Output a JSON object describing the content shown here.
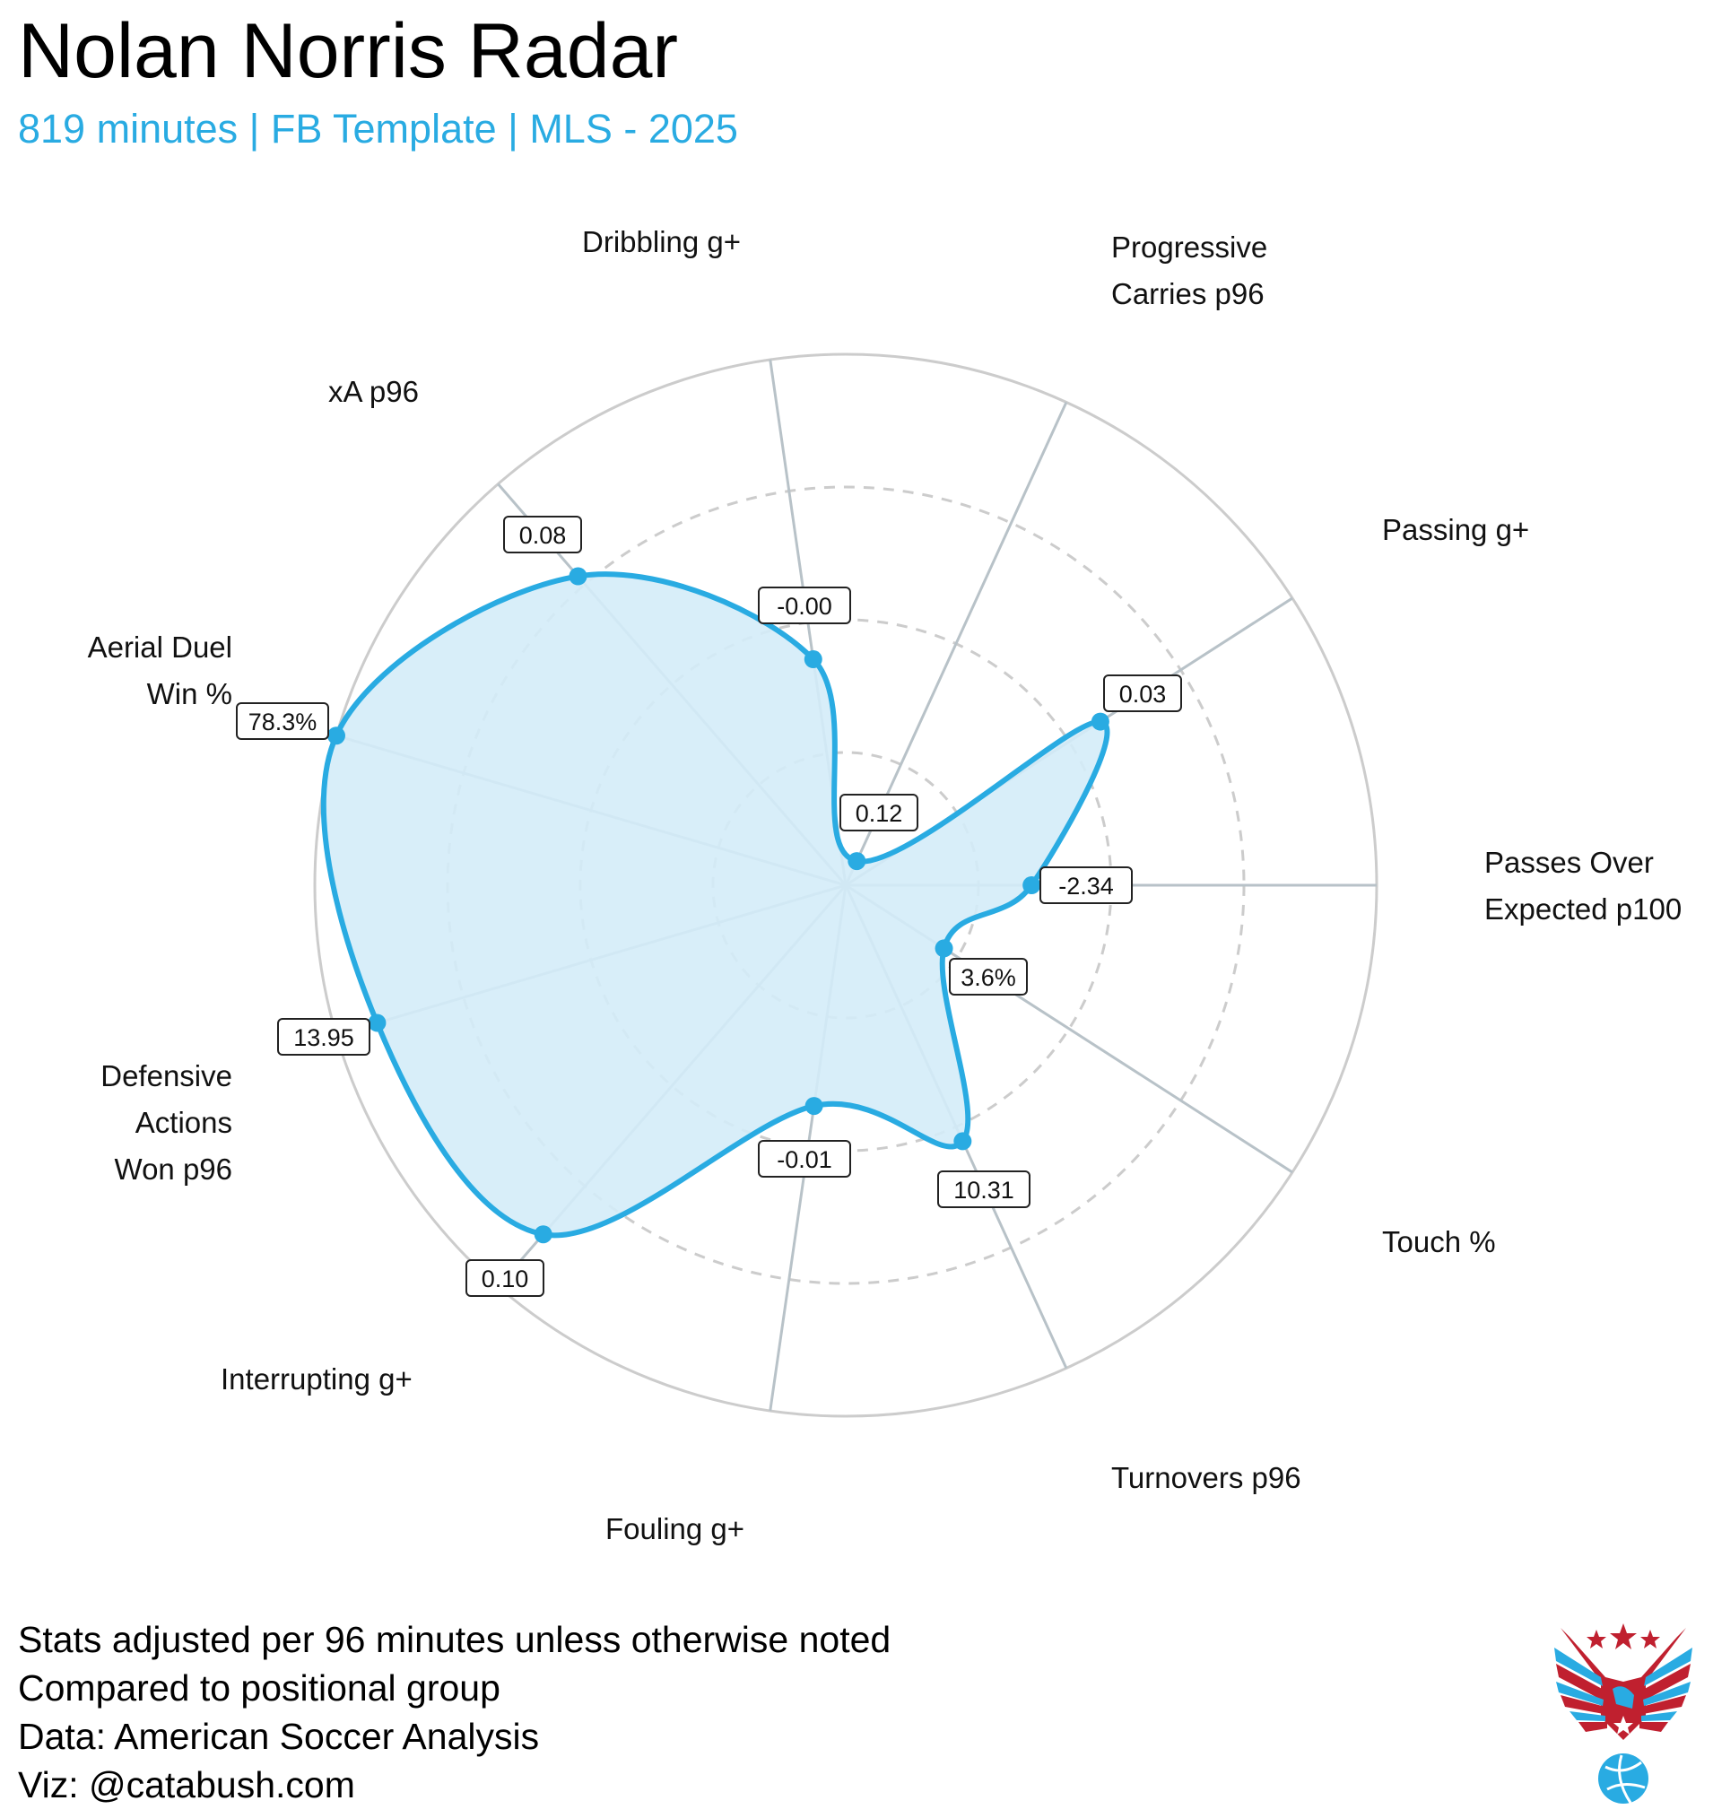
{
  "title": "Nolan Norris Radar",
  "subtitle": "819 minutes | FB Template | MLS - 2025",
  "footer": [
    "Stats adjusted per 96 minutes unless otherwise noted",
    "Compared to positional group",
    "Data: American Soccer Analysis",
    "Viz: @catabush.com"
  ],
  "colors": {
    "accent": "#29abe2",
    "fill": "#d4ecf8",
    "grid": "#cccccc",
    "spoke": "#b8c2c8"
  },
  "logo": "eagle-with-stars-and-soccer-ball",
  "chart_data": {
    "type": "radar",
    "scale": "percentile",
    "range": [
      0,
      100
    ],
    "grid_rings": [
      25,
      50,
      75,
      100
    ],
    "axes": [
      {
        "label": [
          "Dribbling g+"
        ],
        "value": "-0.00",
        "percentile": 43
      },
      {
        "label": [
          "Progressive",
          "Carries p96"
        ],
        "value": "0.12",
        "percentile": 5
      },
      {
        "label": [
          "Passing g+"
        ],
        "value": "0.03",
        "percentile": 57
      },
      {
        "label": [
          "Passes Over",
          "Expected p100"
        ],
        "value": "-2.34",
        "percentile": 35
      },
      {
        "label": [
          "Touch %"
        ],
        "value": "3.6%",
        "percentile": 22
      },
      {
        "label": [
          "Turnovers p96"
        ],
        "value": "10.31",
        "percentile": 53
      },
      {
        "label": [
          "Fouling g+"
        ],
        "value": "-0.01",
        "percentile": 42
      },
      {
        "label": [
          "Interrupting g+"
        ],
        "value": "0.10",
        "percentile": 87
      },
      {
        "label": [
          "Defensive",
          "Actions",
          "Won p96"
        ],
        "value": "13.95",
        "percentile": 92
      },
      {
        "label": [
          "Aerial Duel",
          "Win %"
        ],
        "value": "78.3%",
        "percentile": 100
      },
      {
        "label": [
          "xA p96"
        ],
        "value": "0.08",
        "percentile": 77
      }
    ]
  }
}
